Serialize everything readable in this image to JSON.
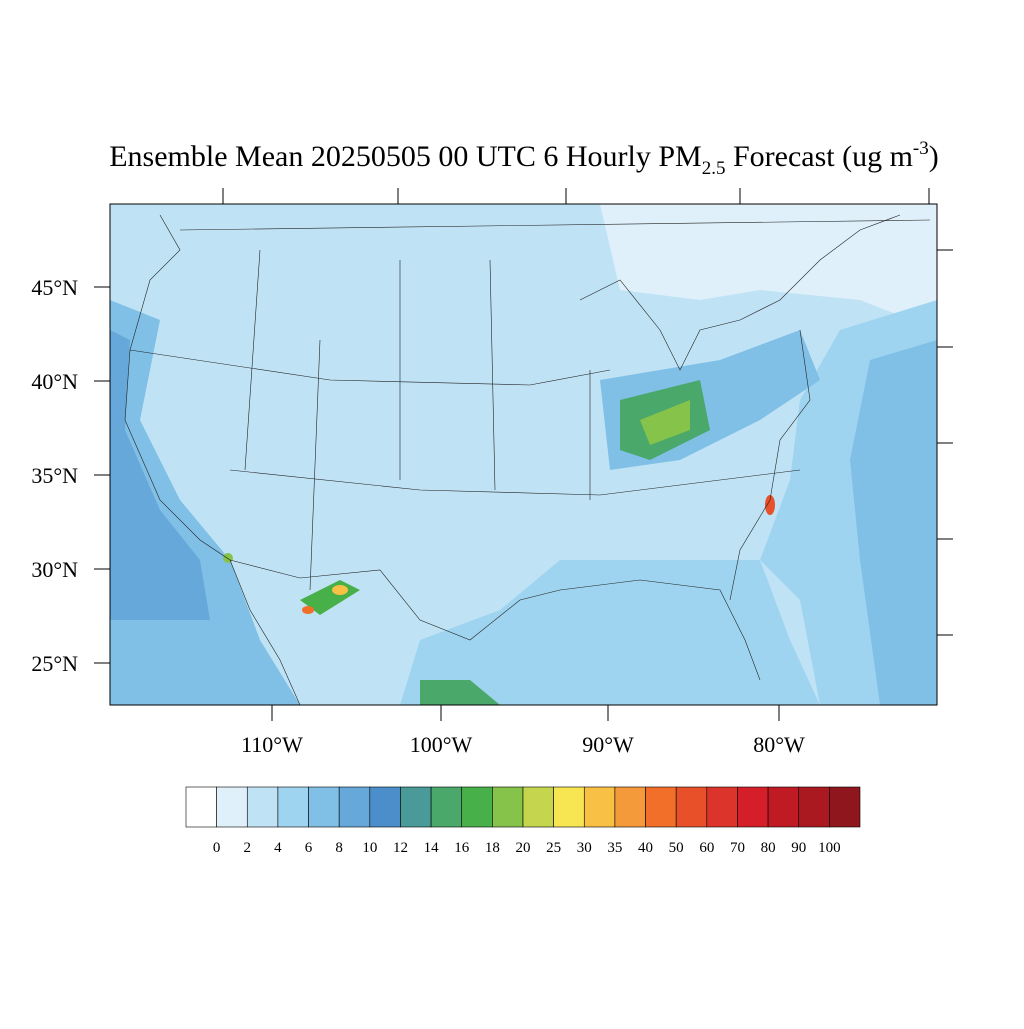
{
  "title": {
    "main": "Ensemble Mean 20250505 00 UTC 6 Hourly PM",
    "sub": "2.5",
    "mid": " Forecast (ug m",
    "sup": "-3",
    "end": ")"
  },
  "map": {
    "lat_labels": [
      "45°N",
      "40°N",
      "35°N",
      "30°N",
      "25°N"
    ],
    "lon_labels": [
      "110°W",
      "100°W",
      "90°W",
      "80°W"
    ]
  },
  "colorbar": {
    "levels": [
      0,
      2,
      4,
      6,
      8,
      10,
      12,
      14,
      16,
      18,
      20,
      25,
      30,
      35,
      40,
      50,
      60,
      70,
      80,
      90,
      100
    ],
    "colors": [
      "#ffffff",
      "#dff0fa",
      "#bfe3f5",
      "#9fd4f0",
      "#80bfe6",
      "#67a8db",
      "#4b8ec9",
      "#4a9a9a",
      "#4aa86a",
      "#48b048",
      "#86c34a",
      "#c5d64e",
      "#f7e552",
      "#f8c044",
      "#f59a3a",
      "#f26f2a",
      "#e8502a",
      "#dc342a",
      "#d41f2a",
      "#c01a24",
      "#aa1820",
      "#8f161c"
    ]
  }
}
